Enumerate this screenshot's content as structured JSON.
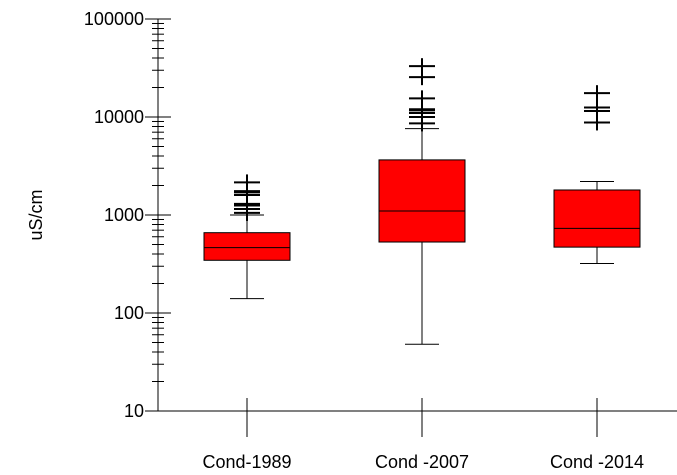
{
  "chart_data": {
    "type": "box",
    "ylabel": "uS/cm",
    "y_scale": "log",
    "ylim": [
      10,
      100000
    ],
    "y_ticks": [
      {
        "value": 10,
        "label": "10"
      },
      {
        "value": 100,
        "label": "100"
      },
      {
        "value": 1000,
        "label": "1000"
      },
      {
        "value": 10000,
        "label": "10000"
      },
      {
        "value": 100000,
        "label": "100000"
      }
    ],
    "categories": [
      "Cond-1989",
      "Cond -2007",
      "Cond -2014"
    ],
    "box_color": "#ff0000",
    "boxes": [
      {
        "category": "Cond-1989",
        "whisker_low": 140,
        "q1": 345,
        "median": 465,
        "q3": 660,
        "whisker_high": 1000,
        "outliers": [
          1050,
          1150,
          1250,
          1300,
          1600,
          1700,
          1750,
          2150
        ]
      },
      {
        "category": "Cond -2007",
        "whisker_low": 48,
        "q1": 530,
        "median": 1100,
        "q3": 3650,
        "whisker_high": 7600,
        "outliers": [
          8600,
          10000,
          11000,
          11700,
          12000,
          15500,
          25500,
          33000
        ]
      },
      {
        "category": "Cond -2014",
        "whisker_low": 320,
        "q1": 470,
        "median": 730,
        "q3": 1800,
        "whisker_high": 2200,
        "outliers": [
          8800,
          11500,
          12500,
          17500
        ]
      }
    ]
  }
}
